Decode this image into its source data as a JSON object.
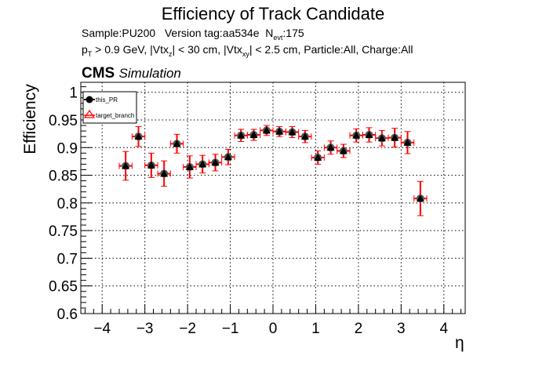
{
  "chart_data": {
    "type": "scatter",
    "title": "Efficiency of Track Candidate",
    "info_line1": {
      "sample": "Sample:PU200",
      "version": "Version tag:aa534e",
      "nevt_label": "N",
      "nevt_sub": "evt",
      "nevt_value": ":175"
    },
    "info_line2": {
      "pt": "p",
      "pt_sub": "T",
      "pt_cut": " > 0.9 GeV, |Vtx",
      "z_sub": "z",
      "z_cut": "| < 30 cm, |Vtx",
      "xy_sub": "xy",
      "rest": "| < 2.5 cm, Particle:All, Charge:All"
    },
    "cms_label": "CMS",
    "cms_sublabel": "Simulation",
    "xlabel": "η",
    "ylabel": "Efficiency",
    "xlim": [
      -4.5,
      4.5
    ],
    "ylim": [
      0.6,
      1.018
    ],
    "xticks": [
      "−4",
      "−3",
      "−2",
      "−1",
      "0",
      "1",
      "2",
      "3",
      "4"
    ],
    "xtick_values": [
      -4,
      -3,
      -2,
      -1,
      0,
      1,
      2,
      3,
      4
    ],
    "yticks": [
      "0.6",
      "0.65",
      "0.7",
      "0.75",
      "0.8",
      "0.85",
      "0.9",
      "0.95",
      "1"
    ],
    "ytick_values": [
      0.6,
      0.65,
      0.7,
      0.75,
      0.8,
      0.85,
      0.9,
      0.95,
      1.0
    ],
    "grid": true,
    "legend_position": "top-left",
    "x_bin_halfwidth": 0.15,
    "x": [
      -3.45,
      -3.15,
      -2.85,
      -2.55,
      -2.25,
      -1.95,
      -1.65,
      -1.35,
      -1.05,
      -0.75,
      -0.45,
      -0.15,
      0.15,
      0.45,
      0.75,
      1.05,
      1.35,
      1.65,
      1.95,
      2.25,
      2.55,
      2.85,
      3.15,
      3.45
    ],
    "series": [
      {
        "name": "this_PR",
        "color": "#000000",
        "values": [
          0.867,
          0.92,
          0.868,
          0.853,
          0.907,
          0.865,
          0.87,
          0.873,
          0.883,
          0.922,
          0.923,
          0.931,
          0.929,
          0.928,
          0.92,
          0.882,
          0.9,
          0.894,
          0.922,
          0.923,
          0.917,
          0.918,
          0.909,
          0.808
        ],
        "errors": [
          0.026,
          0.018,
          0.022,
          0.023,
          0.017,
          0.02,
          0.016,
          0.015,
          0.014,
          0.011,
          0.01,
          0.009,
          0.009,
          0.01,
          0.011,
          0.012,
          0.012,
          0.012,
          0.012,
          0.013,
          0.014,
          0.017,
          0.02,
          0.031
        ]
      },
      {
        "name": "target_branch",
        "color": "#ff0000",
        "values": [
          0.867,
          0.92,
          0.868,
          0.853,
          0.907,
          0.865,
          0.87,
          0.873,
          0.883,
          0.922,
          0.923,
          0.931,
          0.929,
          0.928,
          0.92,
          0.882,
          0.9,
          0.894,
          0.922,
          0.923,
          0.917,
          0.918,
          0.909,
          0.808
        ],
        "errors": [
          0.026,
          0.018,
          0.022,
          0.023,
          0.017,
          0.02,
          0.016,
          0.015,
          0.014,
          0.011,
          0.01,
          0.009,
          0.009,
          0.01,
          0.011,
          0.012,
          0.012,
          0.012,
          0.012,
          0.013,
          0.014,
          0.017,
          0.02,
          0.031
        ]
      }
    ]
  }
}
